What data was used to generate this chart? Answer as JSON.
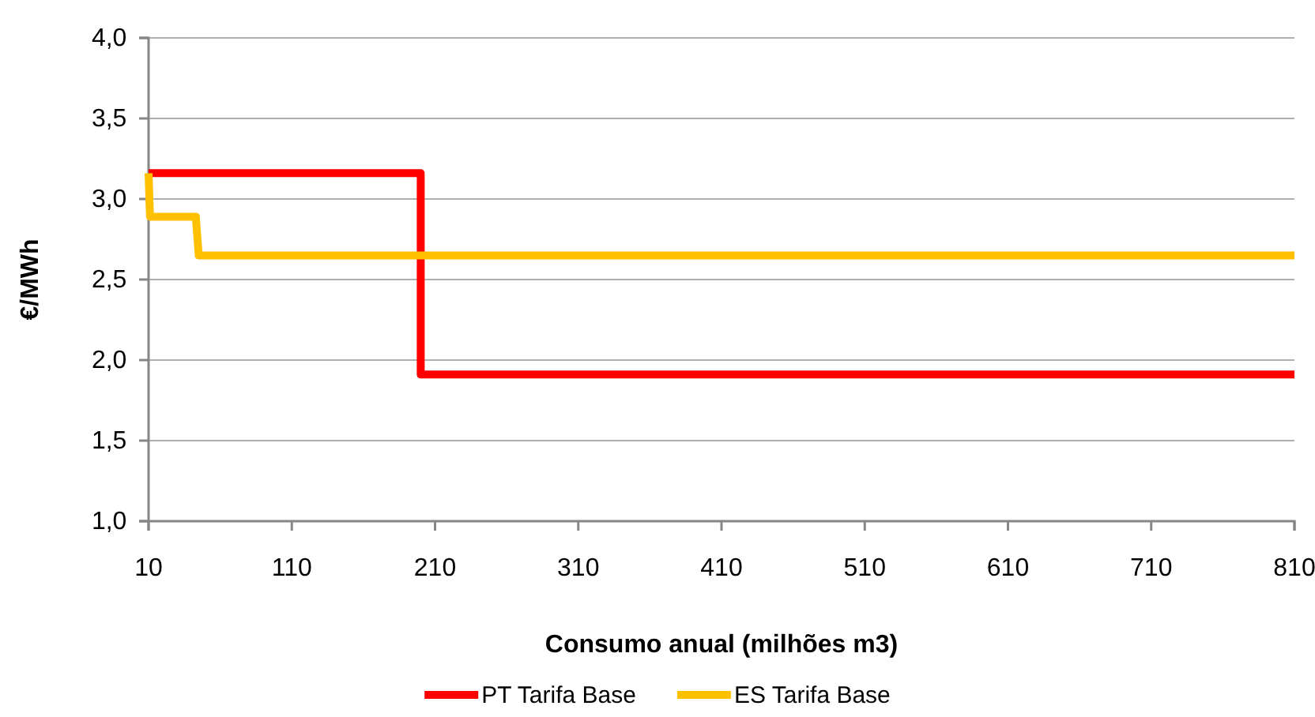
{
  "chart_data": {
    "type": "line",
    "xlabel": "Consumo anual (milhões m3)",
    "ylabel": "€/MWh",
    "xlim": [
      10,
      810
    ],
    "xticks": [
      10,
      110,
      210,
      310,
      410,
      510,
      610,
      710,
      810
    ],
    "ylim": [
      1,
      4
    ],
    "yticks": [
      {
        "value": 1,
        "label": "1,0"
      },
      {
        "value": 1.5,
        "label": "1,5"
      },
      {
        "value": 2,
        "label": "2,0"
      },
      {
        "value": 2.5,
        "label": "2,5"
      },
      {
        "value": 3,
        "label": "3,0"
      },
      {
        "value": 3.5,
        "label": "3,5"
      },
      {
        "value": 4,
        "label": "4,0"
      }
    ],
    "grid": "y",
    "legend": "bottom",
    "marker": "none",
    "line_style": "solid",
    "series": [
      {
        "name": "PT Tarifa Base",
        "color": "#ff0000",
        "x": [
          10,
          200,
          200,
          810
        ],
        "values": [
          3.16,
          3.16,
          1.91,
          1.91
        ]
      },
      {
        "name": "ES Tarifa Base",
        "color": "#ffc000",
        "x": [
          10,
          11,
          43,
          45,
          810
        ],
        "values": [
          3.16,
          2.89,
          2.89,
          2.65,
          2.65
        ]
      }
    ]
  }
}
